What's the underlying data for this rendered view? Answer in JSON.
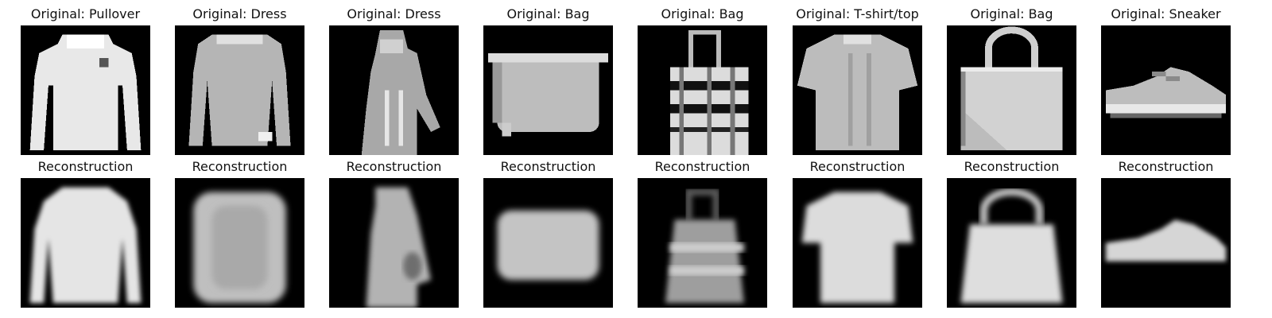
{
  "figure": {
    "originals": [
      {
        "title": "Original: Pullover",
        "item": "pullover"
      },
      {
        "title": "Original: Dress",
        "item": "dress"
      },
      {
        "title": "Original: Dress",
        "item": "dress"
      },
      {
        "title": "Original: Bag",
        "item": "bag"
      },
      {
        "title": "Original: Bag",
        "item": "bag"
      },
      {
        "title": "Original: T-shirt/top",
        "item": "t-shirt/top"
      },
      {
        "title": "Original: Bag",
        "item": "bag"
      },
      {
        "title": "Original: Sneaker",
        "item": "sneaker"
      }
    ],
    "reconstructions": [
      {
        "title": "Reconstruction"
      },
      {
        "title": "Reconstruction"
      },
      {
        "title": "Reconstruction"
      },
      {
        "title": "Reconstruction"
      },
      {
        "title": "Reconstruction"
      },
      {
        "title": "Reconstruction"
      },
      {
        "title": "Reconstruction"
      },
      {
        "title": "Reconstruction"
      }
    ]
  },
  "colors": {
    "background": "#ffffff",
    "image_background": "#000000",
    "title_text": "#111111"
  }
}
